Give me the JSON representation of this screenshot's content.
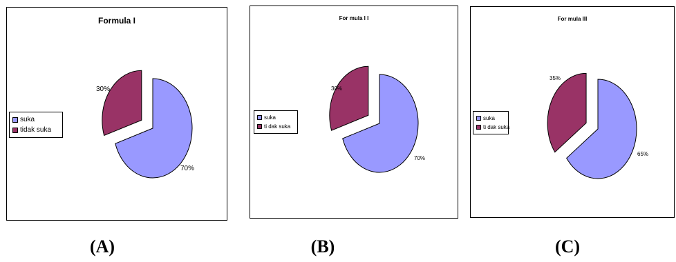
{
  "colors": {
    "suka": "#9999ff",
    "tidak_suka": "#993366",
    "border": "#000000"
  },
  "chart_data": [
    {
      "type": "pie",
      "title": "Formula I",
      "categories": [
        "suka",
        "tidak suka"
      ],
      "values": [
        70,
        30
      ],
      "labels": [
        "70%",
        "30%"
      ],
      "legend": "left",
      "caption": "(A)"
    },
    {
      "type": "pie",
      "title": "For mula I I",
      "categories": [
        "suka",
        "ti dak suka"
      ],
      "values": [
        70,
        30
      ],
      "labels": [
        "70%",
        "30%"
      ],
      "legend": "left",
      "caption": "(B)"
    },
    {
      "type": "pie",
      "title": "For mula III",
      "categories": [
        "suka",
        "ti dak suka"
      ],
      "values": [
        65,
        35
      ],
      "labels": [
        "65%",
        "35%"
      ],
      "legend": "left",
      "caption": "(C)"
    }
  ]
}
